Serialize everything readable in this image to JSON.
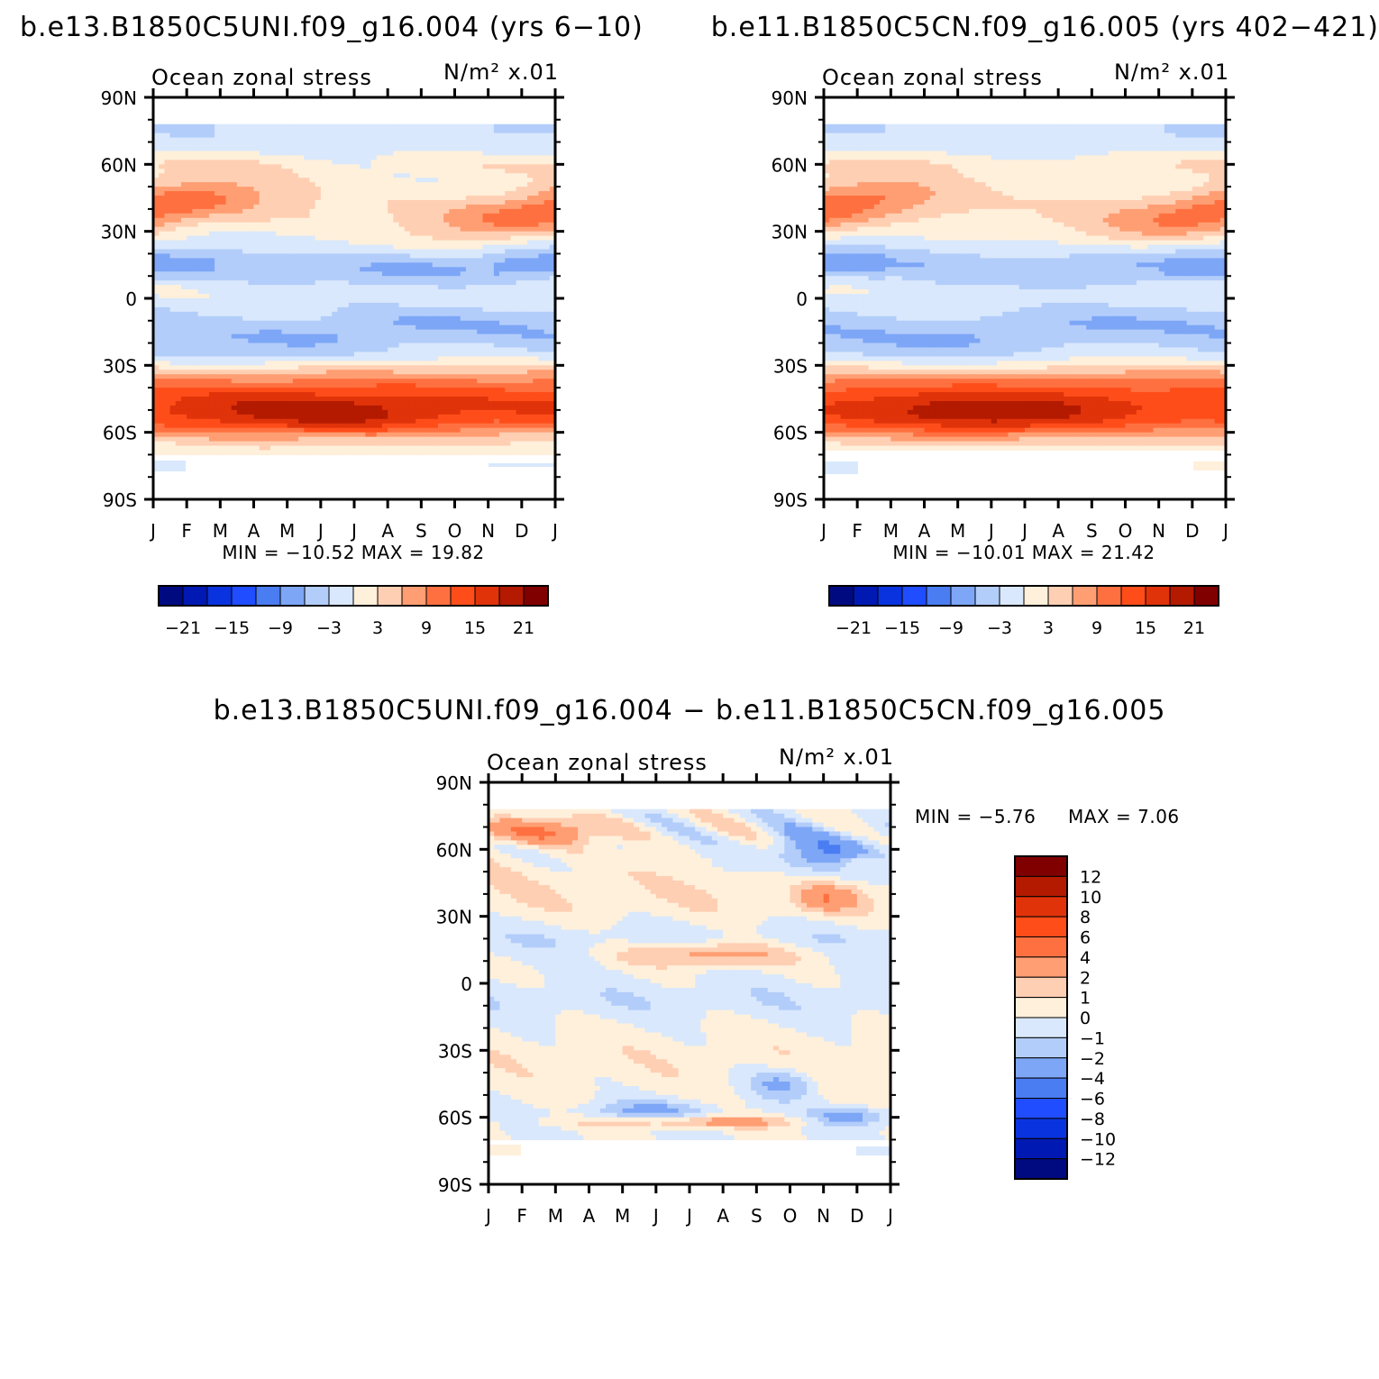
{
  "chart_data": [
    {
      "type": "heatmap",
      "title": "b.e13.B1850C5UNI.f09_g16.004 (yrs 6−10)",
      "left_label": "Ocean zonal stress",
      "units_label": "N/m² x.01",
      "x_categories": [
        "J",
        "F",
        "M",
        "A",
        "M",
        "J",
        "J",
        "A",
        "S",
        "O",
        "N",
        "D",
        "J"
      ],
      "y_ticks": [
        "90N",
        "60N",
        "30N",
        "0",
        "30S",
        "60S",
        "90S"
      ],
      "stats": "MIN = −10.52 MAX =   19.82",
      "min": -10.52,
      "max": 19.82,
      "colorbar": {
        "labels": [
          "−21",
          "−15",
          "−9",
          "−3",
          "3",
          "9",
          "15",
          "21"
        ],
        "levels": [
          -24,
          -21,
          -18,
          -15,
          -12,
          -9,
          -6,
          -3,
          0,
          3,
          6,
          9,
          12,
          15,
          18,
          21,
          24
        ]
      },
      "zonal_profile_approx": [
        {
          "lat": -65,
          "value": 6
        },
        {
          "lat": -55,
          "value": 17
        },
        {
          "lat": -45,
          "value": 10
        },
        {
          "lat": -35,
          "value": 3
        },
        {
          "lat": -25,
          "value": -4
        },
        {
          "lat": -15,
          "value": -6
        },
        {
          "lat": -5,
          "value": -2
        },
        {
          "lat": 5,
          "value": -1
        },
        {
          "lat": 15,
          "value": -7
        },
        {
          "lat": 25,
          "value": -5
        },
        {
          "lat": 35,
          "value": 6
        },
        {
          "lat": 45,
          "value": 9
        },
        {
          "lat": 55,
          "value": 4
        },
        {
          "lat": 65,
          "value": 1
        },
        {
          "lat": 75,
          "value": -2
        }
      ]
    },
    {
      "type": "heatmap",
      "title": "b.e11.B1850C5CN.f09_g16.005 (yrs 402−421)",
      "left_label": "Ocean zonal stress",
      "units_label": "N/m² x.01",
      "x_categories": [
        "J",
        "F",
        "M",
        "A",
        "M",
        "J",
        "J",
        "A",
        "S",
        "O",
        "N",
        "D",
        "J"
      ],
      "y_ticks": [
        "90N",
        "60N",
        "30N",
        "0",
        "30S",
        "60S",
        "90S"
      ],
      "stats": "MIN = −10.01 MAX =   21.42",
      "min": -10.01,
      "max": 21.42,
      "colorbar": {
        "labels": [
          "−21",
          "−15",
          "−9",
          "−3",
          "3",
          "9",
          "15",
          "21"
        ],
        "levels": [
          -24,
          -21,
          -18,
          -15,
          -12,
          -9,
          -6,
          -3,
          0,
          3,
          6,
          9,
          12,
          15,
          18,
          21,
          24
        ]
      },
      "zonal_profile_approx": [
        {
          "lat": -65,
          "value": 6
        },
        {
          "lat": -55,
          "value": 18
        },
        {
          "lat": -45,
          "value": 10
        },
        {
          "lat": -35,
          "value": 3
        },
        {
          "lat": -25,
          "value": -4
        },
        {
          "lat": -15,
          "value": -6
        },
        {
          "lat": -5,
          "value": -2
        },
        {
          "lat": 5,
          "value": -1
        },
        {
          "lat": 15,
          "value": -6
        },
        {
          "lat": 25,
          "value": -4
        },
        {
          "lat": 35,
          "value": 5
        },
        {
          "lat": 45,
          "value": 8
        },
        {
          "lat": 55,
          "value": 3
        },
        {
          "lat": 65,
          "value": 1
        },
        {
          "lat": 75,
          "value": -2
        }
      ]
    },
    {
      "type": "heatmap",
      "title": "b.e13.B1850C5UNI.f09_g16.004 − b.e11.B1850C5CN.f09_g16.005",
      "left_label": "Ocean zonal stress",
      "units_label": "N/m² x.01",
      "x_categories": [
        "J",
        "F",
        "M",
        "A",
        "M",
        "J",
        "J",
        "A",
        "S",
        "O",
        "N",
        "D",
        "J"
      ],
      "y_ticks": [
        "90N",
        "60N",
        "30N",
        "0",
        "30S",
        "60S",
        "90S"
      ],
      "stats_min": "MIN =   −5.76",
      "stats_max": "MAX =    7.06",
      "min": -5.76,
      "max": 7.06,
      "colorbar": {
        "labels": [
          "12",
          "10",
          "8",
          "6",
          "4",
          "2",
          "1",
          "0",
          "−1",
          "−2",
          "−4",
          "−6",
          "−8",
          "−10",
          "−12"
        ],
        "levels": [
          -14,
          -12,
          -10,
          -8,
          -6,
          -4,
          -2,
          -1,
          0,
          1,
          2,
          4,
          6,
          8,
          10,
          12,
          14
        ]
      }
    }
  ],
  "colors": {
    "diverging": [
      "#000a80",
      "#0019b3",
      "#0a33e0",
      "#1f4dff",
      "#4a7cf2",
      "#7da6f7",
      "#b3cdfa",
      "#d9e8fc",
      "#fff0db",
      "#ffcfb3",
      "#ff9e73",
      "#ff7040",
      "#ff4d1a",
      "#e0330a",
      "#b31a00",
      "#800000"
    ]
  }
}
